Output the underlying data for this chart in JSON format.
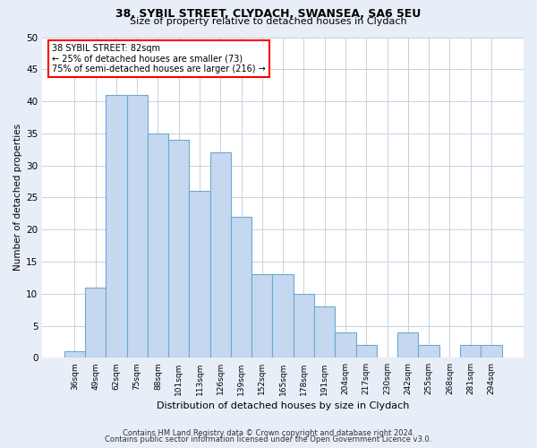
{
  "title1": "38, SYBIL STREET, CLYDACH, SWANSEA, SA6 5EU",
  "title2": "Size of property relative to detached houses in Clydach",
  "xlabel": "Distribution of detached houses by size in Clydach",
  "ylabel": "Number of detached properties",
  "categories": [
    "36sqm",
    "49sqm",
    "62sqm",
    "75sqm",
    "88sqm",
    "101sqm",
    "113sqm",
    "126sqm",
    "139sqm",
    "152sqm",
    "165sqm",
    "178sqm",
    "191sqm",
    "204sqm",
    "217sqm",
    "230sqm",
    "242sqm",
    "255sqm",
    "268sqm",
    "281sqm",
    "294sqm"
  ],
  "values": [
    1,
    11,
    41,
    41,
    35,
    34,
    26,
    32,
    22,
    13,
    13,
    10,
    8,
    4,
    2,
    0,
    4,
    2,
    0,
    2,
    2
  ],
  "bar_color": "#c5d8f0",
  "bar_edge_color": "#6aaad4",
  "ylim": [
    0,
    50
  ],
  "yticks": [
    0,
    5,
    10,
    15,
    20,
    25,
    30,
    35,
    40,
    45,
    50
  ],
  "annotation_title": "38 SYBIL STREET: 82sqm",
  "annotation_line1": "← 25% of detached houses are smaller (73)",
  "annotation_line2": "75% of semi-detached houses are larger (216) →",
  "footer1": "Contains HM Land Registry data © Crown copyright and database right 2024.",
  "footer2": "Contains public sector information licensed under the Open Government Licence v3.0.",
  "bg_color": "#e8eef8",
  "plot_bg_color": "#ffffff",
  "grid_color": "#c8d0e0"
}
